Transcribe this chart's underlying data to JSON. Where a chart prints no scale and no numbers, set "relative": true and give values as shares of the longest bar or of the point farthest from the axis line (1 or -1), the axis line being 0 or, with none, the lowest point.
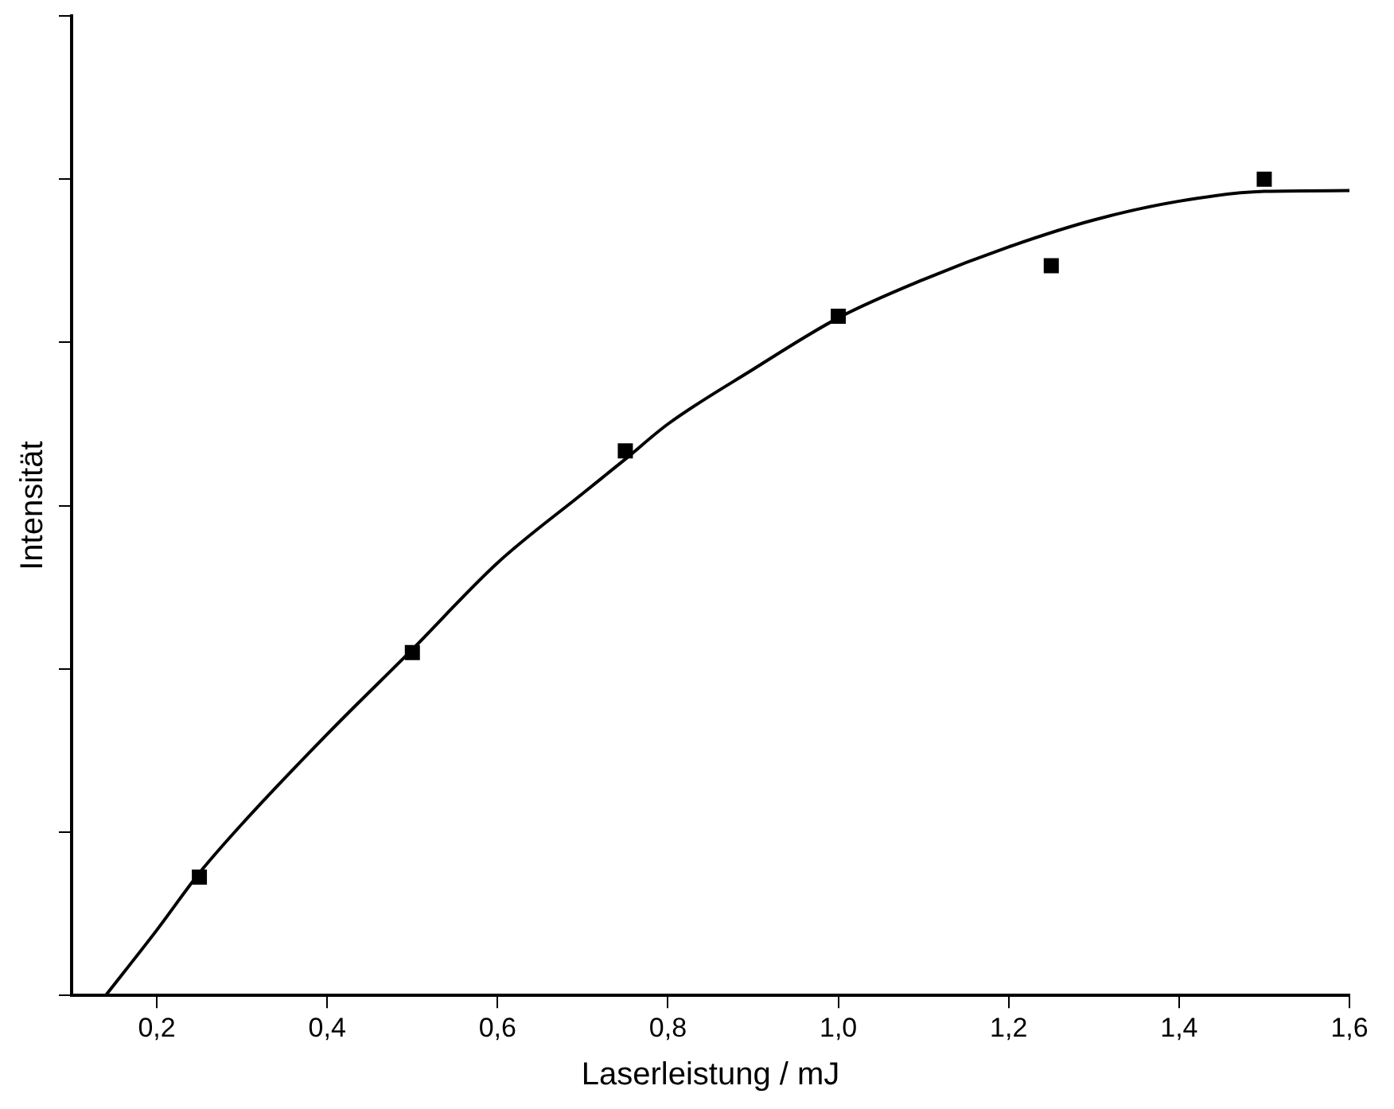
{
  "chart_data": {
    "type": "scatter",
    "xlabel": "Laserleistung / mJ",
    "ylabel": "Intensität",
    "relative": true,
    "xlim": [
      0.1,
      1.6
    ],
    "xticks": [
      {
        "value": 0.2,
        "label": "0,2"
      },
      {
        "value": 0.4,
        "label": "0,4"
      },
      {
        "value": 0.6,
        "label": "0,6"
      },
      {
        "value": 0.8,
        "label": "0,8"
      },
      {
        "value": 1.0,
        "label": "1,0"
      },
      {
        "value": 1.2,
        "label": "1,2"
      },
      {
        "value": 1.4,
        "label": "1,4"
      },
      {
        "value": 1.6,
        "label": "1,6"
      }
    ],
    "tick_labels": "x",
    "grid": false,
    "legend": false,
    "series": [
      {
        "marker": "square",
        "color": "#000000",
        "x": [
          0.25,
          0.5,
          0.75,
          1.0,
          1.25,
          1.5
        ],
        "values": [
          0.145,
          0.42,
          0.667,
          0.832,
          0.894,
          1.0
        ]
      },
      {
        "type": "line",
        "marker": "none",
        "color": "#000000",
        "x": [
          0.14,
          0.2,
          0.25,
          0.3,
          0.4,
          0.5,
          0.6,
          0.7,
          0.75,
          0.8,
          0.9,
          1.0,
          1.1,
          1.2,
          1.3,
          1.4,
          1.5,
          1.6
        ],
        "values": [
          0,
          0.08,
          0.15,
          0.21,
          0.32,
          0.424,
          0.53,
          0.615,
          0.657,
          0.7,
          0.767,
          0.83,
          0.877,
          0.917,
          0.95,
          0.973,
          0.985,
          0.986
        ]
      }
    ]
  }
}
